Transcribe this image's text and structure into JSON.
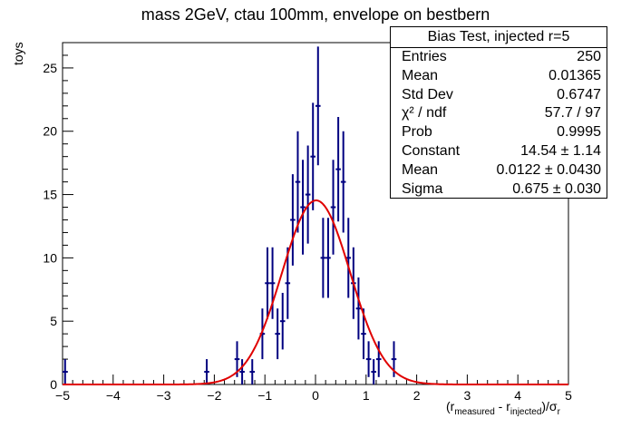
{
  "header": {
    "title": "mass 2GeV, ctau 100mm, envelope on bestbern"
  },
  "axes": {
    "ylabel": "toys",
    "xlabel_parts": [
      "(r",
      "measured",
      " - r",
      "injected",
      ")/σ",
      "r"
    ]
  },
  "statbox": {
    "title": "Bias Test, injected r=5",
    "rows": [
      {
        "key": "Entries",
        "value": "250"
      },
      {
        "key": "Mean",
        "value": "0.01365"
      },
      {
        "key": "Std Dev",
        "value": "0.6747"
      },
      {
        "key": "χ² / ndf",
        "value": "57.7 / 97"
      },
      {
        "key": "Prob",
        "value": "0.9995"
      },
      {
        "key": "Constant",
        "value": "14.54 ± 1.14"
      },
      {
        "key": "Mean",
        "value": "0.0122 ± 0.0430"
      },
      {
        "key": "Sigma",
        "value": "0.675 ± 0.030"
      }
    ]
  },
  "colors": {
    "points": "#000080",
    "fit": "#e00000",
    "axis": "#000000"
  },
  "chart_data": {
    "type": "scatter",
    "xlim": [
      -5,
      5
    ],
    "ylim": [
      0,
      27
    ],
    "x_ticks": [
      -5,
      -4,
      -3,
      -2,
      -1,
      0,
      1,
      2,
      3,
      4,
      5
    ],
    "x_tick_labels": [
      "−5",
      "−4",
      "−3",
      "−2",
      "−1",
      "0",
      "1",
      "2",
      "3",
      "4",
      "5"
    ],
    "y_ticks": [
      0,
      5,
      10,
      15,
      20,
      25
    ],
    "y_tick_labels": [
      "0",
      "5",
      "10",
      "15",
      "20",
      "25"
    ],
    "bin_width": 0.1,
    "points": [
      {
        "x": -4.95,
        "y": 1
      },
      {
        "x": -2.15,
        "y": 1
      },
      {
        "x": -1.55,
        "y": 2
      },
      {
        "x": -1.45,
        "y": 1
      },
      {
        "x": -1.25,
        "y": 1
      },
      {
        "x": -1.05,
        "y": 4
      },
      {
        "x": -0.95,
        "y": 8
      },
      {
        "x": -0.85,
        "y": 8
      },
      {
        "x": -0.75,
        "y": 4
      },
      {
        "x": -0.65,
        "y": 5
      },
      {
        "x": -0.55,
        "y": 8
      },
      {
        "x": -0.45,
        "y": 13
      },
      {
        "x": -0.35,
        "y": 16
      },
      {
        "x": -0.25,
        "y": 14
      },
      {
        "x": -0.15,
        "y": 15
      },
      {
        "x": -0.05,
        "y": 18
      },
      {
        "x": 0.05,
        "y": 22
      },
      {
        "x": 0.15,
        "y": 10
      },
      {
        "x": 0.25,
        "y": 10
      },
      {
        "x": 0.35,
        "y": 14
      },
      {
        "x": 0.45,
        "y": 17
      },
      {
        "x": 0.55,
        "y": 16
      },
      {
        "x": 0.65,
        "y": 10
      },
      {
        "x": 0.75,
        "y": 8
      },
      {
        "x": 0.85,
        "y": 6
      },
      {
        "x": 0.95,
        "y": 4
      },
      {
        "x": 1.05,
        "y": 2
      },
      {
        "x": 1.15,
        "y": 1
      },
      {
        "x": 1.25,
        "y": 2
      },
      {
        "x": 1.55,
        "y": 2
      }
    ],
    "fit": {
      "type": "gaussian",
      "constant": 14.54,
      "mean": 0.0122,
      "sigma": 0.675,
      "range": [
        -5,
        5
      ]
    }
  }
}
